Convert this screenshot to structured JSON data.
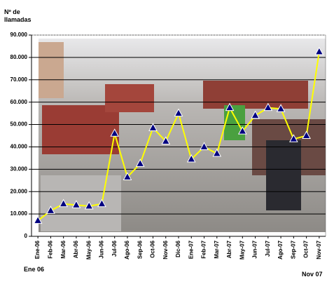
{
  "chart_data": {
    "type": "line",
    "y_axis_label": "Nº de llamadas",
    "range_labels": [
      "Ene 06",
      "Nov 07"
    ],
    "categories": [
      "Ene-06",
      "Feb-06",
      "Mar-06",
      "Abr-06",
      "May-06",
      "Jun-06",
      "Jul-06",
      "Ago-06",
      "Sep-06",
      "Oct-06",
      "Nov-06",
      "Dic-06",
      "Ene-07",
      "Feb-07",
      "Mar-07",
      "Abr-07",
      "May-07",
      "Jun-07",
      "Jul-07",
      "Ago-07",
      "Sep-07",
      "Oct-07",
      "Nov-07"
    ],
    "values": [
      7000,
      11500,
      14500,
      14000,
      13500,
      14500,
      46000,
      26500,
      32500,
      48500,
      42500,
      55000,
      34500,
      40000,
      37000,
      57500,
      47000,
      54000,
      57500,
      57000,
      43500,
      45000,
      82500
    ],
    "color": "#ffff00",
    "marker_color": "#000080",
    "ylim": [
      0,
      90000
    ],
    "yticks": [
      0,
      {
        "value": 10000,
        "label": "10.000"
      },
      {
        "value": 20000,
        "label": "20.000"
      },
      {
        "value": 30000,
        "label": "30.000"
      },
      {
        "value": 40000,
        "label": "40.000"
      },
      {
        "value": 50000,
        "label": "50.000"
      },
      {
        "value": 60000,
        "label": "60.000"
      },
      {
        "value": 70000,
        "label": "70.000"
      },
      {
        "value": 80000,
        "label": "80.000"
      },
      {
        "value": 90000,
        "label": "90.000"
      }
    ],
    "grid": true
  }
}
